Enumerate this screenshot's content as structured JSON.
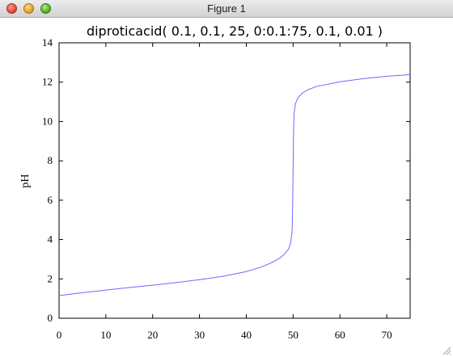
{
  "window": {
    "title": "Figure 1"
  },
  "colors": {
    "line": "#6b6bff"
  },
  "icons": [
    "close-button",
    "minimize-button",
    "zoom-button",
    "resize-grip-icon"
  ],
  "chart_data": {
    "type": "line",
    "title": "diproticacid( 0.1, 0.1, 25, 0:0.1:75, 0.1, 0.01 )",
    "xlabel": "",
    "ylabel": "pH",
    "xlim": [
      0,
      75
    ],
    "ylim": [
      0,
      14
    ],
    "xticks": [
      0,
      10,
      20,
      30,
      40,
      50,
      60,
      70
    ],
    "yticks": [
      0,
      2,
      4,
      6,
      8,
      10,
      12,
      14
    ],
    "grid": false,
    "series": [
      {
        "x": [
          0,
          5,
          10,
          15,
          20,
          25,
          30,
          35,
          40,
          43,
          45,
          47,
          48,
          49,
          49.5,
          49.8,
          49.9,
          50,
          50.1,
          50.2,
          50.5,
          51,
          52,
          53,
          55,
          60,
          65,
          70,
          75
        ],
        "values": [
          1.15,
          1.3,
          1.43,
          1.56,
          1.68,
          1.81,
          1.96,
          2.13,
          2.37,
          2.59,
          2.78,
          3.03,
          3.22,
          3.5,
          3.85,
          4.5,
          5.7,
          7.6,
          9.5,
          10.4,
          10.9,
          11.2,
          11.45,
          11.6,
          11.78,
          12.02,
          12.18,
          12.3,
          12.38
        ]
      }
    ]
  }
}
